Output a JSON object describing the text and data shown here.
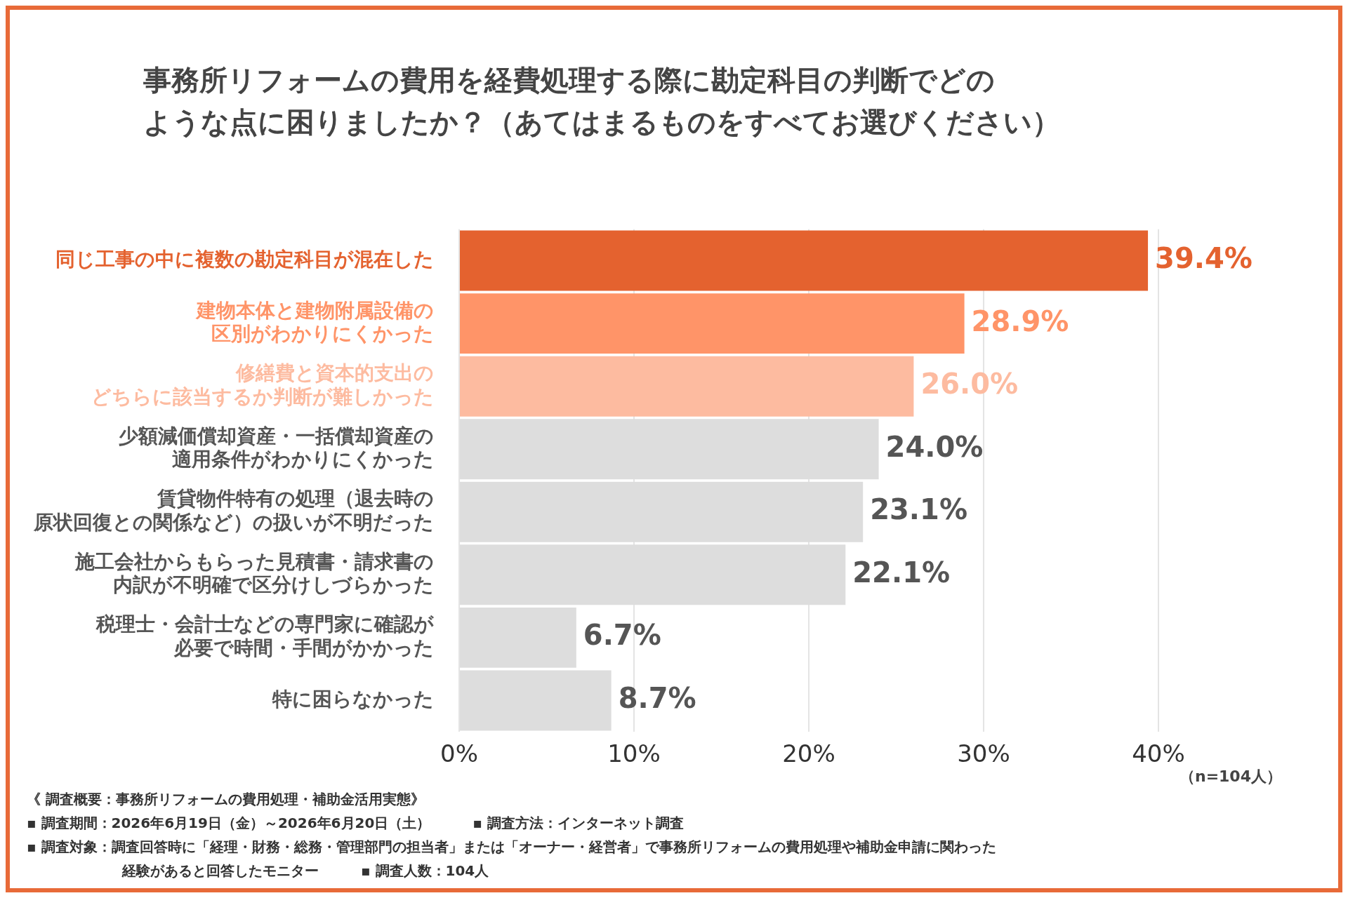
{
  "chart_data": {
    "type": "bar",
    "orientation": "horizontal",
    "title": "事務所リフォームの費用を経費処理する際に勘定科目の判断でどのような点に困りましたか？（あてはまるものをすべてお選びください）",
    "categories": [
      "同じ工事の中に複数の勘定科目が混在した",
      "建物本体と建物附属設備の区別がわかりにくかった",
      "修繕費と資本的支出のどちらに該当するか判断が難しかった",
      "少額減価償却資産・一括償却資産の適用条件がわかりにくかった",
      "賃貸物件特有の処理（退去時の原状回復との関係など）の扱いが不明だった",
      "施工会社からもらった見積書・請求書の内訳が不明確で区分けしづらかった",
      "税理士・会計士などの専門家に確認が必要で時間・手間がかかった",
      "特に困らなかった"
    ],
    "values": [
      39.4,
      28.9,
      26.0,
      24.0,
      23.1,
      22.1,
      6.7,
      8.7
    ],
    "value_labels": [
      "39.4%",
      "28.9%",
      "26.0%",
      "24.0%",
      "23.1%",
      "22.1%",
      "6.7%",
      "8.7%"
    ],
    "colors": [
      "#e4622f",
      "#ff9468",
      "#fdbba0",
      "#dddddd",
      "#dddddd",
      "#dddddd",
      "#dddddd",
      "#dddddd"
    ],
    "xlim": [
      0,
      40
    ],
    "xticks": [
      {
        "value": 0,
        "label": "0%"
      },
      {
        "value": 10,
        "label": "10%"
      },
      {
        "value": 20,
        "label": "20%"
      },
      {
        "value": 30,
        "label": "30%"
      },
      {
        "value": 40,
        "label": "40%"
      }
    ],
    "grid": "x",
    "legend": false,
    "annotations": [
      "（n=104人）",
      "《 調査概要：事務所リフォームの費用処理・補助金活用実態》",
      "▪ 調査期間：2026年6月19日（金）～2026年6月20日（土）",
      "▪ 調査方法：インターネット調査",
      "▪ 調査対象：調査回答時に「経理・財務・総務・管理部門の担当者」または「オーナー・経営者」で事務所リフォームの費用処理や補助金申請に関わった経験があると回答したモニター",
      "▪ 調査人数：104人"
    ]
  }
}
